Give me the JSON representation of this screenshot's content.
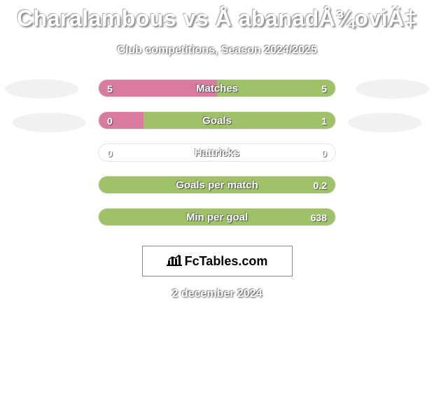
{
  "title": "Charalambous vs Å abanadÅ¾oviÄ‡",
  "subtitle": "Club competitions, Season 2024/2025",
  "date": "2 december 2024",
  "logo_text": "FcTables.com",
  "colors": {
    "left_fill": "#d97b9e",
    "right_fill": "#9fc269",
    "oval": "#f1f1f1",
    "background": "#ffffff"
  },
  "stats": [
    {
      "label": "Matches",
      "left_value": "5",
      "right_value": "5",
      "left_pct": 50,
      "right_pct": 50,
      "show_ovals": true
    },
    {
      "label": "Goals",
      "left_value": "0",
      "right_value": "1",
      "left_pct": 19,
      "right_pct": 81,
      "show_ovals": true
    },
    {
      "label": "Hattricks",
      "left_value": "0",
      "right_value": "0",
      "left_pct": 0,
      "right_pct": 0,
      "show_ovals": false
    },
    {
      "label": "Goals per match",
      "left_value": "",
      "right_value": "0.2",
      "left_pct": 0,
      "right_pct": 100,
      "show_ovals": false
    },
    {
      "label": "Min per goal",
      "left_value": "",
      "right_value": "638",
      "left_pct": 0,
      "right_pct": 100,
      "show_ovals": false
    }
  ]
}
